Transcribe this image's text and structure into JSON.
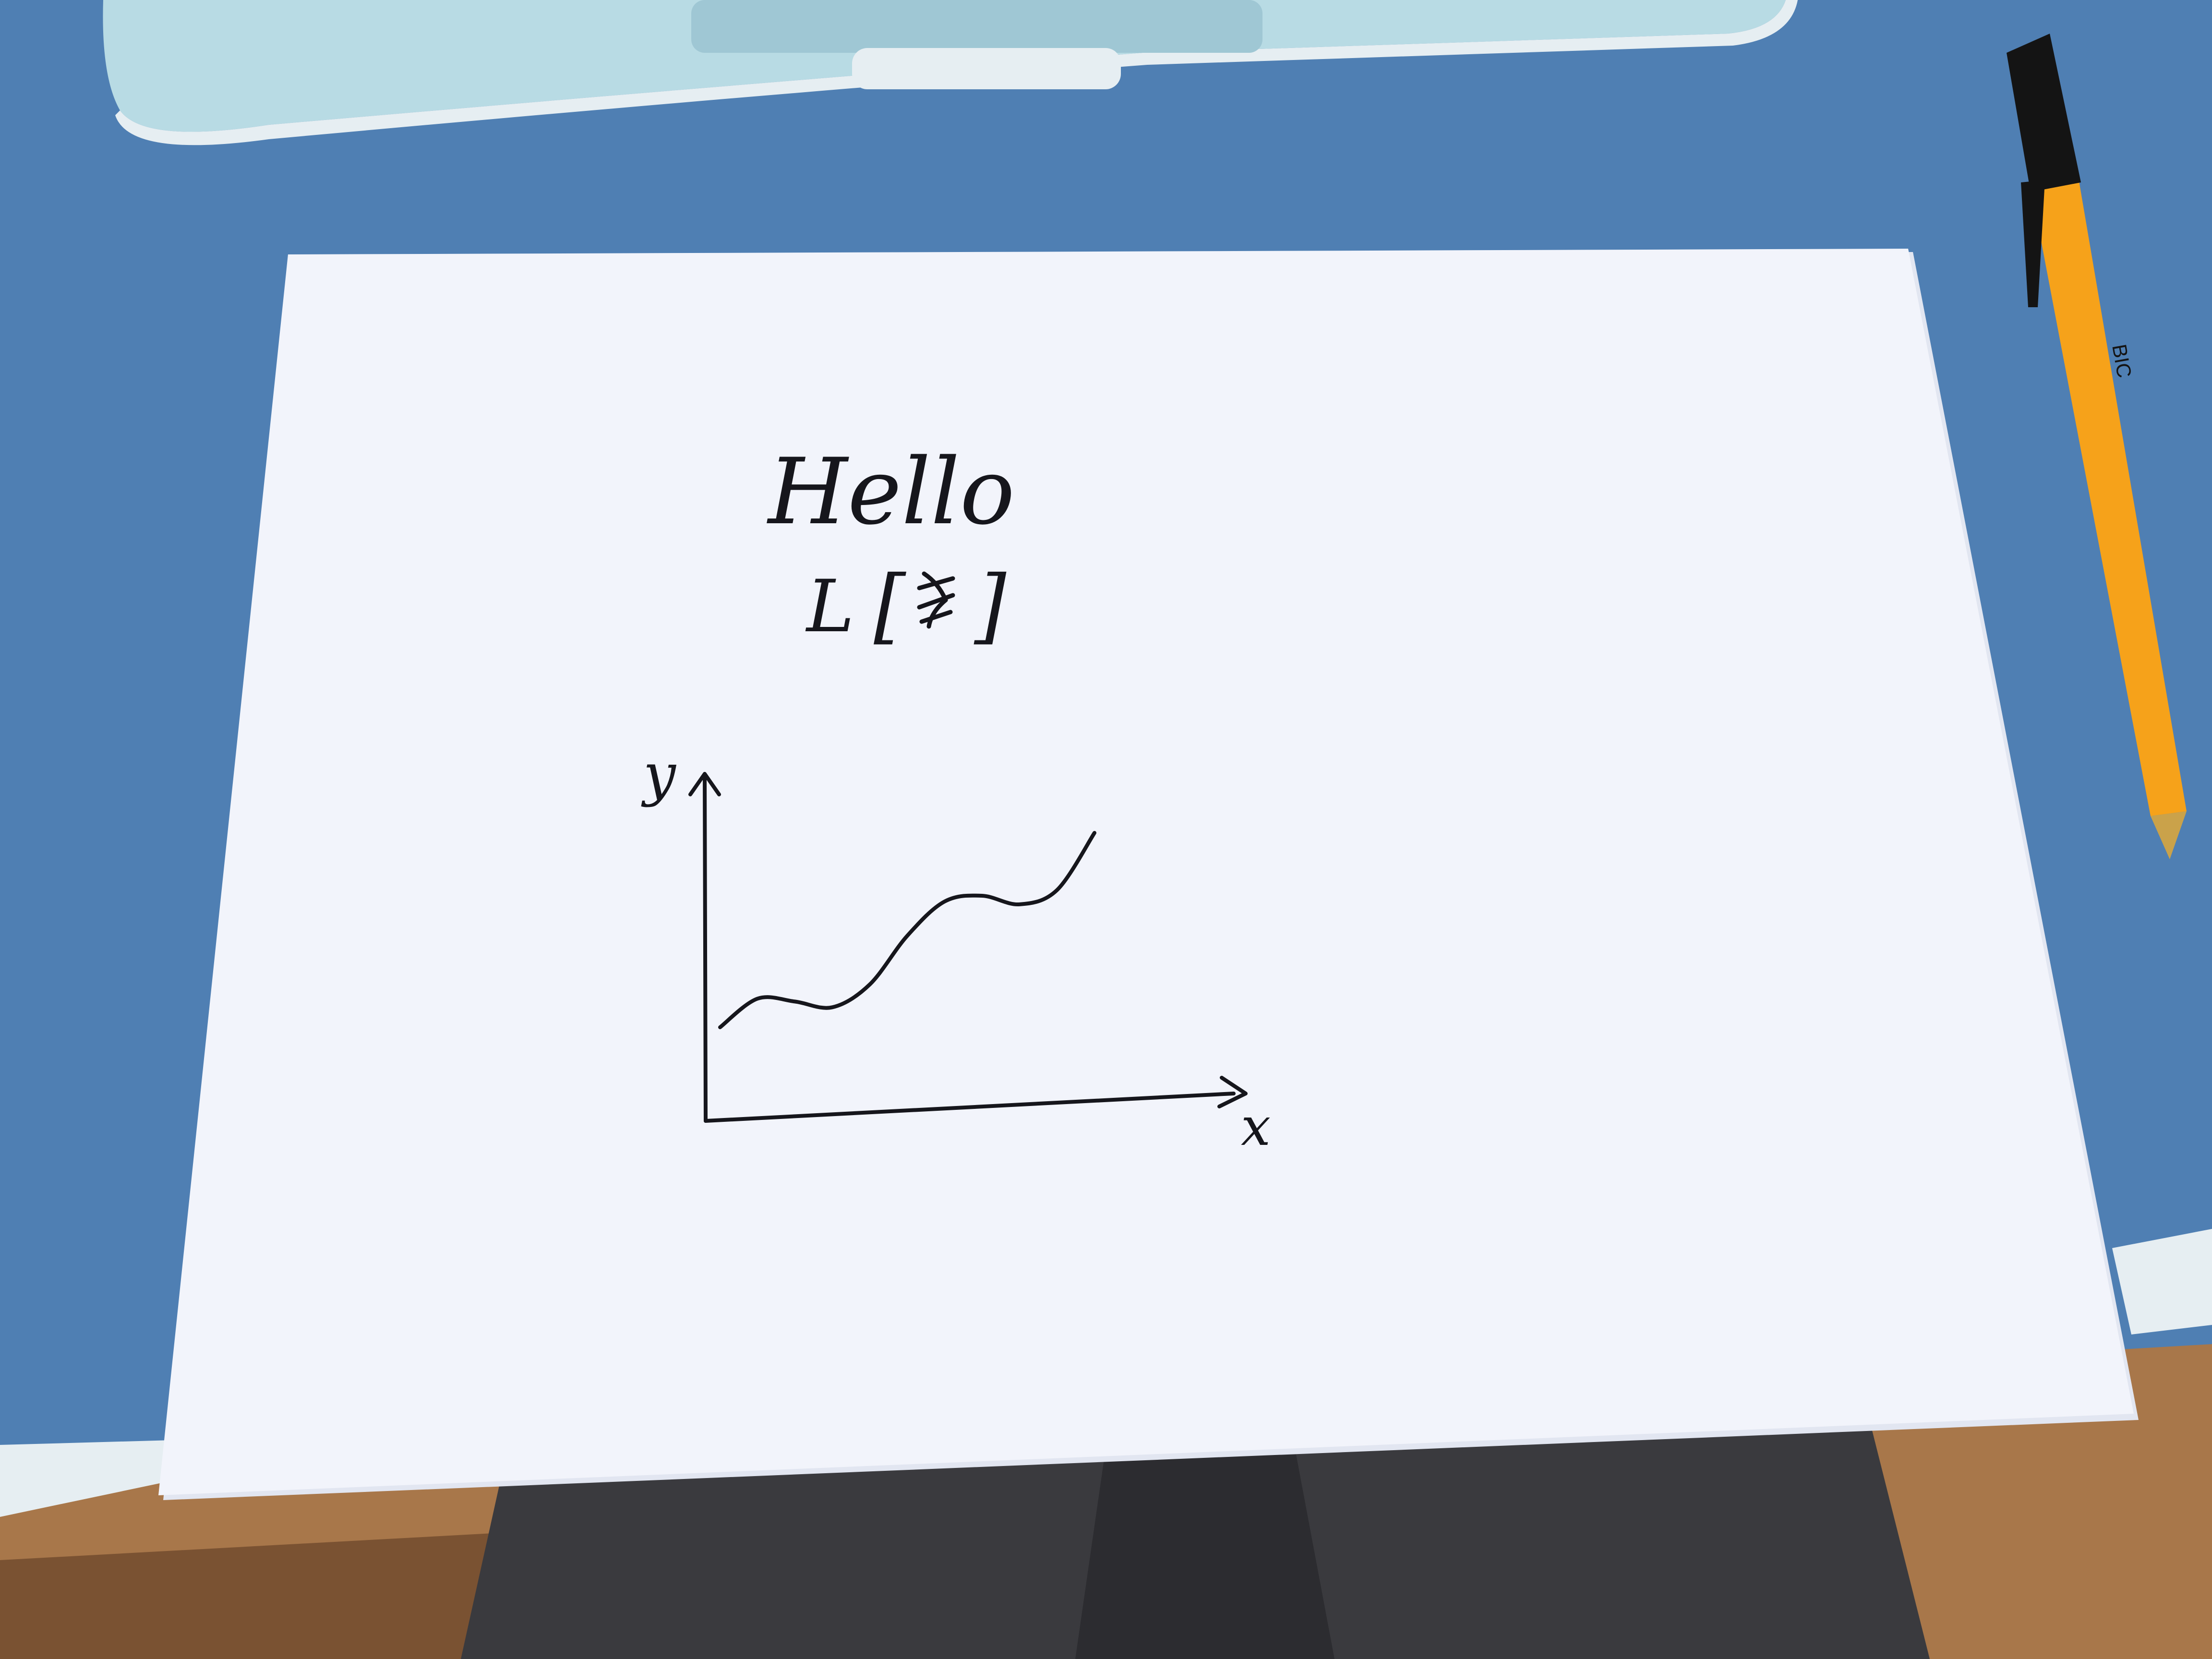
{
  "scene": {
    "description_type": "photo",
    "colors": {
      "desk": "#4f7fb3",
      "desk_shadow": "#3f6fa3",
      "floor": "#a8774a",
      "floor_dark": "#7a5232",
      "paper": "#f2f4fb",
      "paper_shadow": "#e2e6f1",
      "laptop_body": "#b8dbe4",
      "laptop_edge": "#e6eef2",
      "laptop_trackpad": "#9fc7d4",
      "pen_body": "#f6a21a",
      "pen_cap": "#141414",
      "pen_tip": "#caa24a",
      "ink": "#16161c",
      "fabric": "#3a3a3e"
    },
    "objects": {
      "laptop": "laptop",
      "pen": "ballpoint-pen",
      "paper": "sheet-of-paper"
    }
  },
  "paper_content": {
    "greeting": "Hello",
    "formula_symbol": "L",
    "open_bracket": "[",
    "close_bracket": "]",
    "scribble": "crossed-out-text"
  },
  "chart_data": {
    "type": "line",
    "title": "",
    "xlabel": "x",
    "ylabel": "y",
    "style": "hand-drawn sketch",
    "series": [
      {
        "x": [
          0,
          1,
          2,
          3,
          4,
          5,
          6,
          7,
          8,
          9,
          10
        ],
        "values": [
          2.0,
          3.0,
          2.9,
          2.7,
          3.5,
          5.2,
          6.4,
          6.6,
          6.3,
          6.8,
          8.8
        ]
      }
    ],
    "grid": false,
    "legend": "none"
  }
}
